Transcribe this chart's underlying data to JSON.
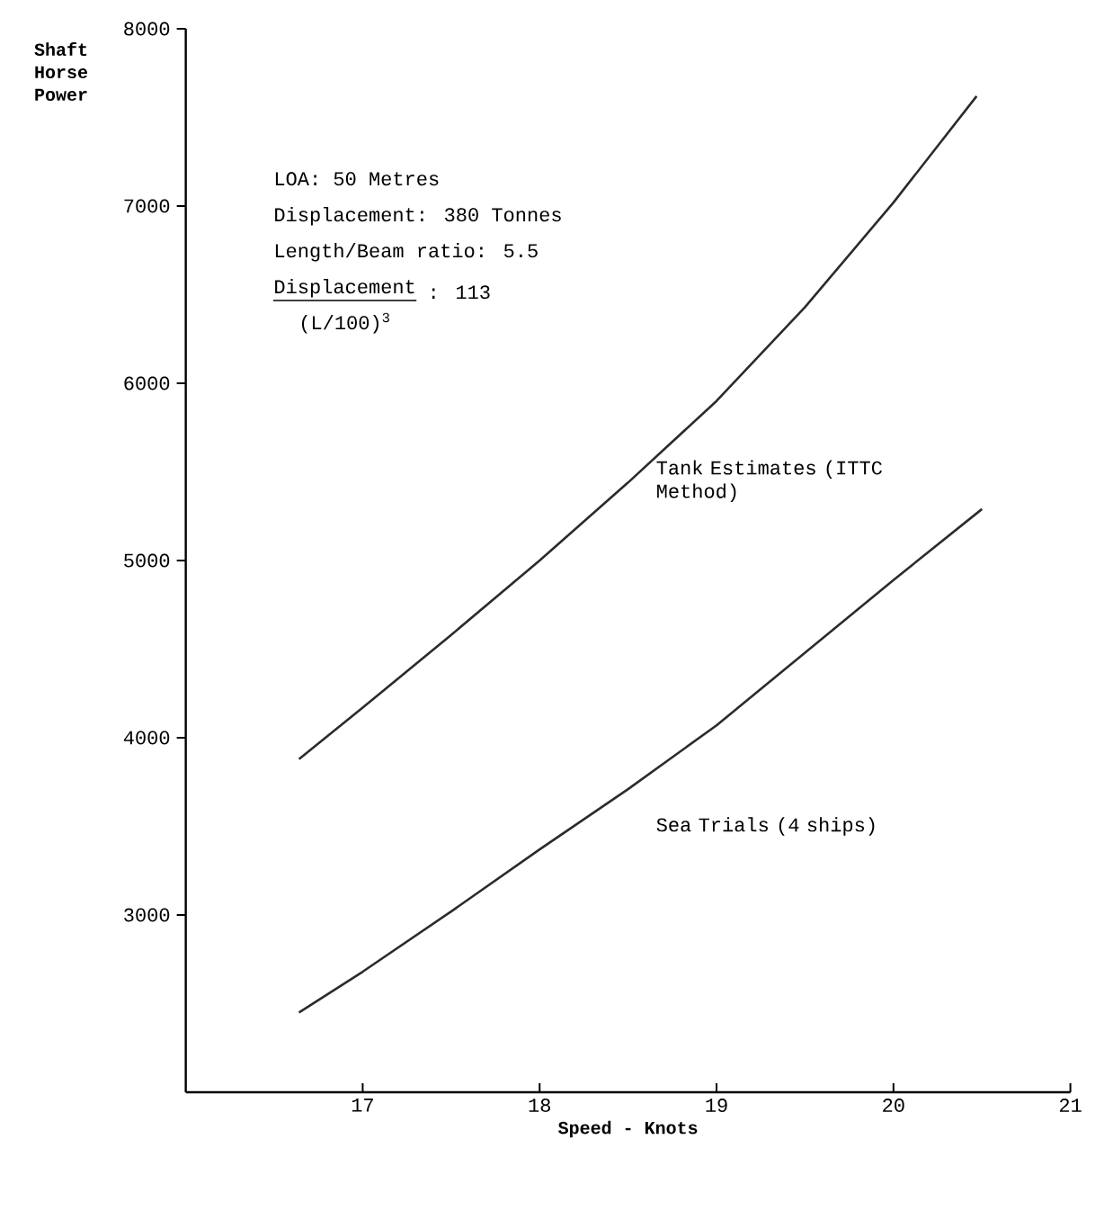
{
  "chart_data": {
    "type": "line",
    "xlabel": "Speed - Knots",
    "ylabel": "Shaft Horse Power",
    "xlim": [
      16,
      21
    ],
    "xticks": [
      17,
      18,
      19,
      20,
      21
    ],
    "ylim": [
      2000,
      8000
    ],
    "yticks": [
      3000,
      4000,
      5000,
      6000,
      7000,
      8000
    ],
    "grid": false,
    "legend": false,
    "marker": "none",
    "line_style": "solid",
    "annotations": [
      "LOA: 50 Metres",
      "Displacement: 380 Tonnes",
      "Length/Beam ratio: 5.5",
      "Displacement",
      "(L/100)$^{3}$",
      ": 113"
    ],
    "series": [
      {
        "name": "Tank Estimates (ITTC Method)",
        "color": "#2b2b2b",
        "x": [
          16.64,
          17,
          17.5,
          18,
          18.5,
          19,
          19.5,
          20,
          20.47
        ],
        "values": [
          3880,
          4170,
          4580,
          5000,
          5440,
          5900,
          6430,
          7020,
          7620
        ]
      },
      {
        "name": "Sea Trials (4 ships)",
        "color": "#2b2b2b",
        "x": [
          16.64,
          17,
          17.5,
          18,
          18.5,
          19,
          19.5,
          20,
          20.5
        ],
        "values": [
          2450,
          2680,
          3020,
          3370,
          3710,
          4070,
          4480,
          4890,
          5290
        ]
      }
    ]
  }
}
